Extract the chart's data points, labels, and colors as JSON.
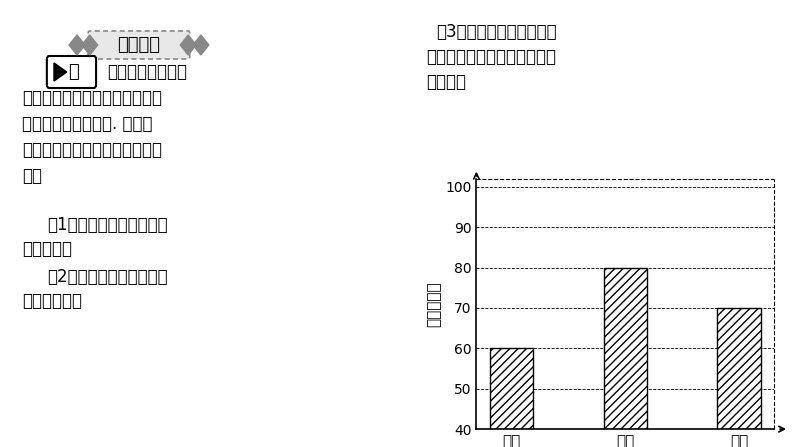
{
  "categories": [
    "丁丁",
    "豆豆",
    "乐乐"
  ],
  "values": [
    60,
    80,
    70
  ],
  "ymin": 40,
  "ymax": 100,
  "yticks": [
    40,
    50,
    60,
    70,
    80,
    90,
    100
  ],
  "ylabel": "成绩（分）",
  "bar_color": "white",
  "bar_edge_color": "black",
  "hatch": "////",
  "background_color": "#ffffff",
  "title_banner_text": "易错易混",
  "example_label": "例",
  "text_line1": "一次知识竞赛后，",
  "text_line2": "丁丁、豆豆、乐乐三人把自己的",
  "text_line3": "成绩制成条形统计图. 如图所",
  "text_line4": "示，根据图中信息，回答下列问",
  "text_line5": "题：",
  "q1_line1": "（1）谁的分数最高？谁的",
  "q1_line2": "分数最低？",
  "q2_line1": "（2）豆豆的分数是丁丁的",
  "q2_line2": "分数的几倍？",
  "q3_line1": "（3）这个统计图容易使人",
  "q3_line2": "产生错觉吗？应该怎样修改较",
  "q3_line3": "为合理？"
}
